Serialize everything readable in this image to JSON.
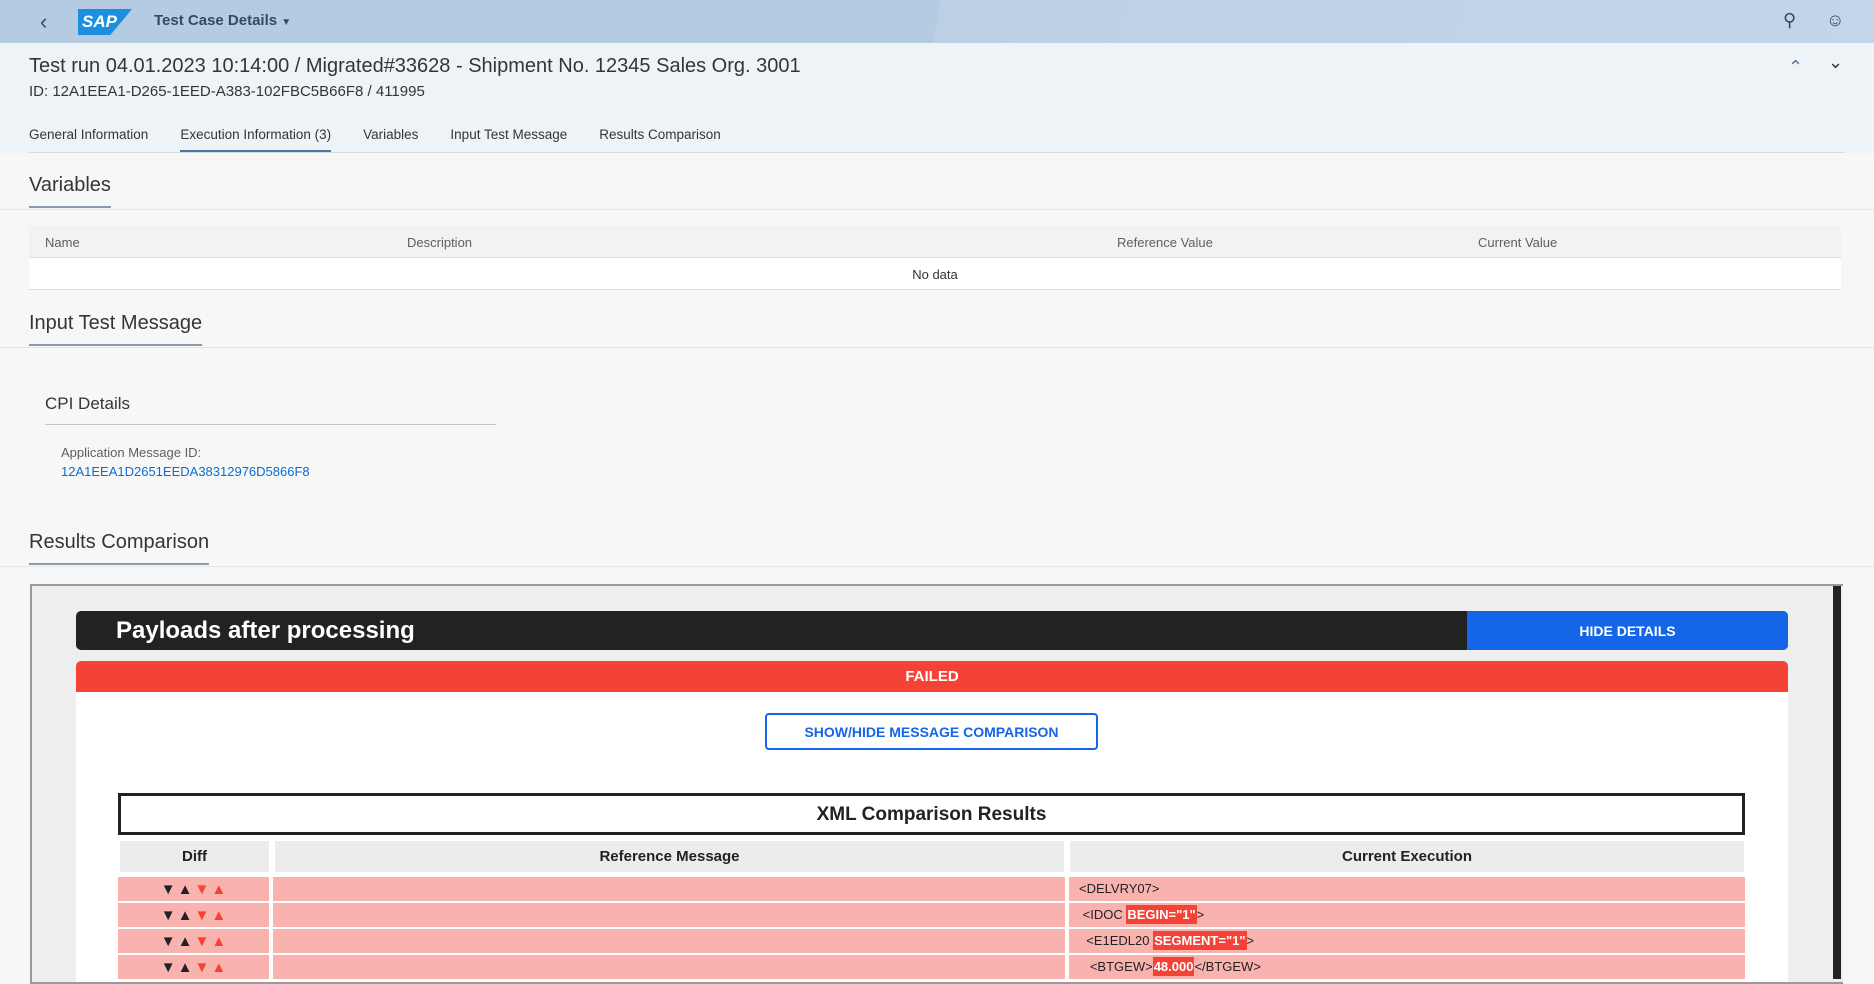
{
  "shell": {
    "title": "Test Case Details",
    "logo": "SAP",
    "icons": [
      "back-icon",
      "search-icon",
      "user-icon"
    ]
  },
  "header": {
    "title": "Test run 04.01.2023 10:14:00 / Migrated#33628 - Shipment No. 12345 Sales Org. 3001",
    "id": "ID: 12A1EEA1-D265-1EED-A383-102FBC5B66F8 / 411995"
  },
  "tabs": [
    {
      "label": "General Information"
    },
    {
      "label": "Execution Information (3)",
      "selected": true
    },
    {
      "label": "Variables"
    },
    {
      "label": "Input Test Message"
    },
    {
      "label": "Results Comparison"
    }
  ],
  "variables": {
    "heading": "Variables",
    "columns": [
      "Name",
      "Description",
      "Reference Value",
      "Current Value"
    ],
    "empty": "No data"
  },
  "input": {
    "heading": "Input Test Message",
    "cpi": "CPI Details",
    "label": "Application Message ID:",
    "value": "12A1EEA1D2651EEDA38312976D5866F8"
  },
  "results": {
    "heading": "Results Comparison",
    "payload_title": "Payloads after processing",
    "hide_label": "HIDE DETAILS",
    "status": "FAILED",
    "showhide_label": "SHOW/HIDE MESSAGE COMPARISON",
    "xml_title": "XML Comparison Results",
    "columns": [
      "Diff",
      "Reference Message",
      "Current Execution"
    ],
    "rows": [
      {
        "ref": "",
        "pre": "<DELVRY07>",
        "hl": "",
        "post": ""
      },
      {
        "ref": "",
        "pre": " <IDOC ",
        "hl": "BEGIN=\"1\"",
        "post": ">"
      },
      {
        "ref": "",
        "pre": "  <E1EDL20 ",
        "hl": "SEGMENT=\"1\"",
        "post": ">"
      },
      {
        "ref": "",
        "pre": "   <BTGEW>",
        "hl": "48.000",
        "post": "</BTGEW>"
      }
    ]
  },
  "colors": {
    "failed": "#f44336",
    "accent": "#1565e8",
    "diff_row": "#f9b3ae"
  }
}
